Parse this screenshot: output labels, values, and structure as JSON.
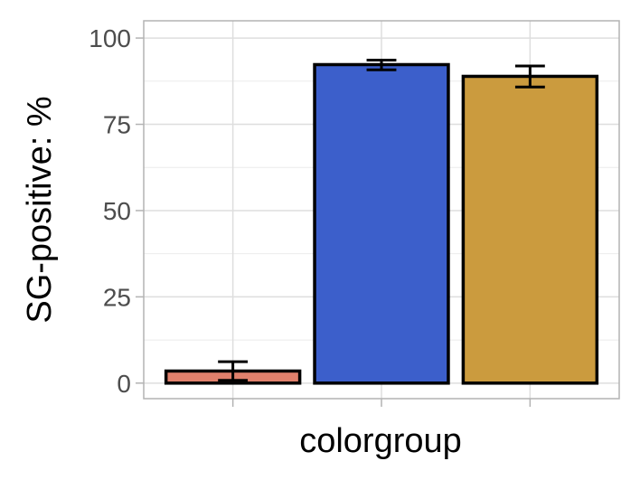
{
  "chart_data": {
    "type": "bar",
    "title": "",
    "xlabel": "colorgroup",
    "ylabel": "SG-positive: %",
    "ylim": [
      -4.5,
      105
    ],
    "yticks": [
      0,
      25,
      50,
      75,
      100
    ],
    "ytick_labels": [
      "0",
      "25",
      "50",
      "75",
      "100"
    ],
    "grid": true,
    "legend": "none",
    "bars": [
      {
        "value": 3.5,
        "err_low": 0.8,
        "err_high": 6.2,
        "color": "#E0806C"
      },
      {
        "value": 92.3,
        "err_low": 90.8,
        "err_high": 93.6,
        "color": "#3C5FCB"
      },
      {
        "value": 88.9,
        "err_low": 85.8,
        "err_high": 91.9,
        "color": "#CB9B3E"
      }
    ]
  }
}
